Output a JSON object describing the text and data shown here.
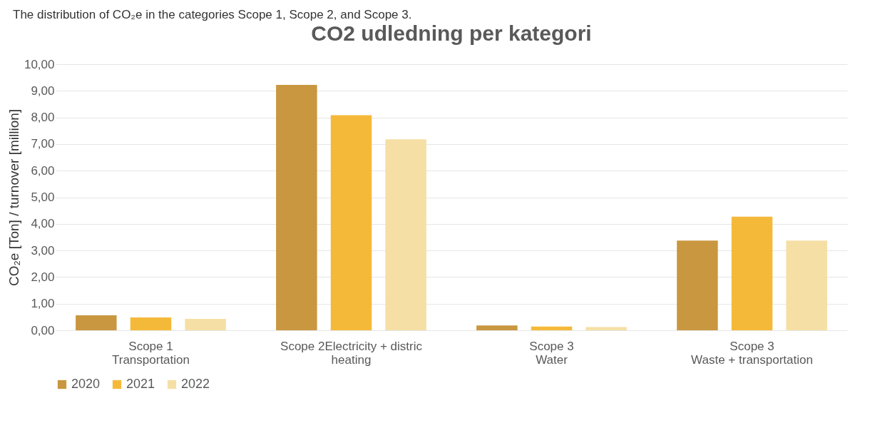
{
  "chart_data": {
    "type": "bar",
    "title": "CO2 udledning per kategori",
    "annotations": [
      "The distribution of CO₂e in the categories Scope 1, Scope 2, and Scope 3."
    ],
    "ylabel": "CO₂e [Ton] / turnover [million]",
    "categories": [
      "Scope 1\nTransportation",
      "Scope 2Electricity + distric heating",
      "Scope 3\nWater",
      "Scope 3\nWaste + transportation"
    ],
    "series": [
      {
        "name": "2020",
        "color": "#c9973f",
        "values": [
          0.56,
          9.22,
          0.18,
          3.37
        ]
      },
      {
        "name": "2021",
        "color": "#f5b93a",
        "values": [
          0.48,
          8.08,
          0.14,
          4.27
        ]
      },
      {
        "name": "2022",
        "color": "#f6dfa5",
        "values": [
          0.43,
          7.18,
          0.12,
          3.37
        ]
      }
    ],
    "ylim": [
      0,
      10
    ],
    "yticks": [
      {
        "value": 0,
        "label": "0,00"
      },
      {
        "value": 1,
        "label": "1,00"
      },
      {
        "value": 2,
        "label": "2,00"
      },
      {
        "value": 3,
        "label": "3,00"
      },
      {
        "value": 4,
        "label": "4,00"
      },
      {
        "value": 5,
        "label": "5,00"
      },
      {
        "value": 6,
        "label": "6,00"
      },
      {
        "value": 7,
        "label": "7,00"
      },
      {
        "value": 8,
        "label": "8,00"
      },
      {
        "value": 9,
        "label": "9,00"
      },
      {
        "value": 10,
        "label": "10,00"
      }
    ],
    "grid": "y",
    "legend": "bottom"
  }
}
